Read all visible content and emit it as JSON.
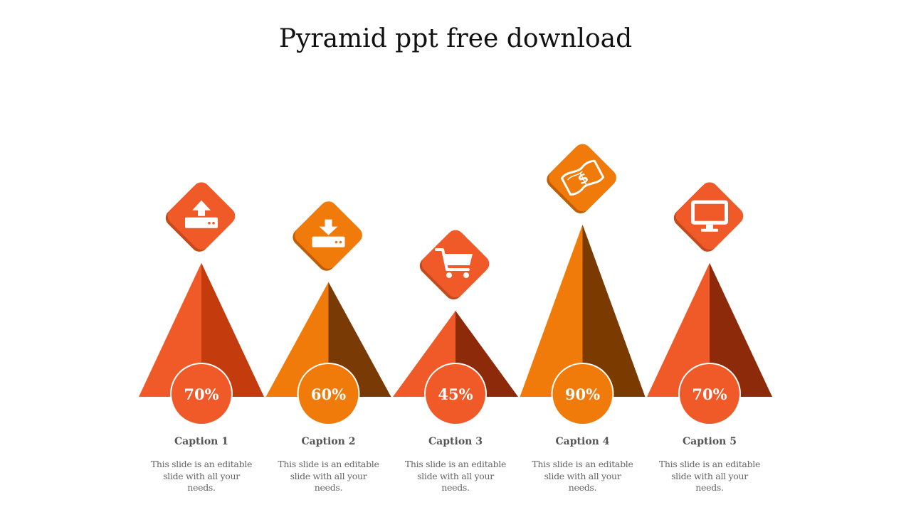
{
  "title": "Pyramid ppt free download",
  "chart_data": {
    "type": "bar",
    "categories": [
      "Caption 1",
      "Caption 2",
      "Caption 3",
      "Caption 4",
      "Caption 5"
    ],
    "values": [
      70,
      60,
      45,
      90,
      70
    ],
    "value_labels": [
      "70%",
      "60%",
      "45%",
      "90%",
      "70%"
    ],
    "descriptions": [
      "This slide is an editable slide with all your needs.",
      "This slide is an editable slide with all your needs.",
      "This slide is an editable slide with all your needs.",
      "This slide is an editable slide with all your needs.",
      "This slide is an editable slide with all your needs."
    ],
    "icons": [
      "upload-icon",
      "download-icon",
      "shopping-cart-icon",
      "money-bill-icon",
      "monitor-icon"
    ],
    "colors": [
      {
        "light": "#F05A28",
        "dark": "#C43C0E",
        "diamond": "#F05A28",
        "diamond_shadow": "#C24A1C"
      },
      {
        "light": "#F07A0A",
        "dark": "#7A3A06",
        "diamond": "#F07A0A",
        "diamond_shadow": "#C05E05"
      },
      {
        "light": "#F05A28",
        "dark": "#8C2A0A",
        "diamond": "#F05A28",
        "diamond_shadow": "#C24A1C"
      },
      {
        "light": "#F07A0A",
        "dark": "#7A3A00",
        "diamond": "#F07A0A",
        "diamond_shadow": "#C05E05"
      },
      {
        "light": "#F05A28",
        "dark": "#8C2A0A",
        "diamond": "#F05A28",
        "diamond_shadow": "#C24A1C"
      }
    ],
    "ylim": [
      0,
      100
    ]
  }
}
